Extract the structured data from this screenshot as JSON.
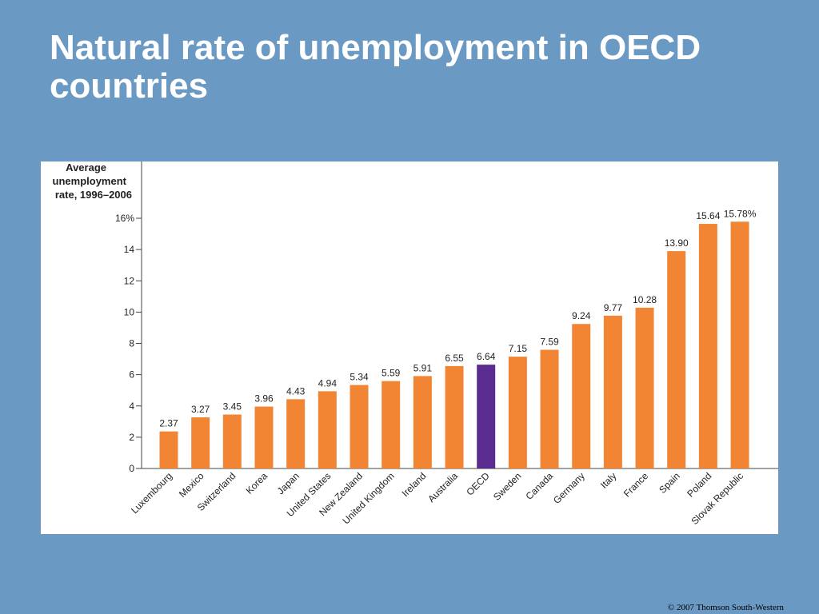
{
  "slide": {
    "title_line1": "Natural rate of unemployment in OECD",
    "title_line2": "countries",
    "copyright": "© 2007 Thomson South-Western"
  },
  "colors": {
    "background": "#6a9ac4",
    "bar": "#f28534",
    "highlight_bar": "#5b2c8f"
  },
  "chart_data": {
    "type": "bar",
    "ylabel_lines": [
      "Average",
      "unemployment",
      "rate, 1996–2006"
    ],
    "ylim": [
      0,
      16
    ],
    "yticks": [
      0,
      2,
      4,
      6,
      8,
      10,
      12,
      14,
      16
    ],
    "ytick_labels": [
      "0",
      "2",
      "4",
      "6",
      "8",
      "10",
      "12",
      "14",
      "16%"
    ],
    "grid": false,
    "categories": [
      "Luxembourg",
      "Mexico",
      "Switzerland",
      "Korea",
      "Japan",
      "United States",
      "New Zealand",
      "United Kingdom",
      "Ireland",
      "Australia",
      "OECD",
      "Sweden",
      "Canada",
      "Germany",
      "Italy",
      "France",
      "Spain",
      "Poland",
      "Slovak Republic"
    ],
    "values": [
      2.37,
      3.27,
      3.45,
      3.96,
      4.43,
      4.94,
      5.34,
      5.59,
      5.91,
      6.55,
      6.64,
      7.15,
      7.59,
      9.24,
      9.77,
      10.28,
      13.9,
      15.64,
      15.78
    ],
    "value_labels": [
      "2.37",
      "3.27",
      "3.45",
      "3.96",
      "4.43",
      "4.94",
      "5.34",
      "5.59",
      "5.91",
      "6.55",
      "6.64",
      "7.15",
      "7.59",
      "9.24",
      "9.77",
      "10.28",
      "13.90",
      "15.64",
      "15.78%"
    ],
    "highlight_category": "OECD"
  }
}
